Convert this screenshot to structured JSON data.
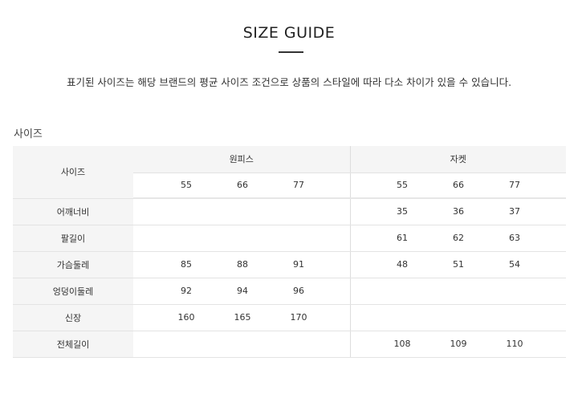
{
  "header": {
    "title": "SIZE GUIDE",
    "description": "표기된 사이즈는 해당 브랜드의 평균 사이즈 조건으로 상품의 스타일에 따라 다소 차이가 있을 수 있습니다."
  },
  "section_title": "사이즈",
  "table": {
    "corner": "사이즈",
    "groups": [
      {
        "label": "원피스",
        "sizes": [
          "55",
          "66",
          "77"
        ]
      },
      {
        "label": "자켓",
        "sizes": [
          "55",
          "66",
          "77"
        ]
      }
    ],
    "rows": [
      {
        "label": "어깨너비",
        "onepiece": [
          "",
          "",
          ""
        ],
        "jacket": [
          "35",
          "36",
          "37"
        ]
      },
      {
        "label": "팔길이",
        "onepiece": [
          "",
          "",
          ""
        ],
        "jacket": [
          "61",
          "62",
          "63"
        ]
      },
      {
        "label": "가슴둘레",
        "onepiece": [
          "85",
          "88",
          "91"
        ],
        "jacket": [
          "48",
          "51",
          "54"
        ]
      },
      {
        "label": "엉덩이둘레",
        "onepiece": [
          "92",
          "94",
          "96"
        ],
        "jacket": [
          "",
          "",
          ""
        ]
      },
      {
        "label": "신장",
        "onepiece": [
          "160",
          "165",
          "170"
        ],
        "jacket": [
          "",
          "",
          ""
        ]
      },
      {
        "label": "전체길이",
        "onepiece": [
          "",
          "",
          ""
        ],
        "jacket": [
          "108",
          "109",
          "110"
        ]
      }
    ]
  }
}
